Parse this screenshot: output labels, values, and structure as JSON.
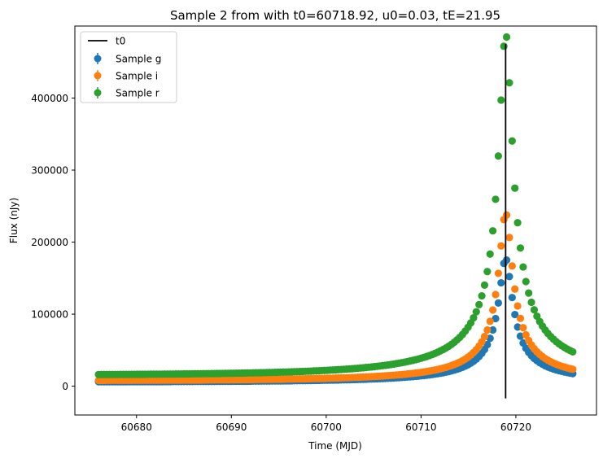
{
  "chart_data": {
    "type": "scatter",
    "title": "Sample 2 from with t0=60718.92, u0=0.03, tE=21.95",
    "xlabel": "Time (MJD)",
    "ylabel": "Flux (nJy)",
    "xlim": [
      60673.5,
      60728.5
    ],
    "ylim": [
      -40000,
      500000
    ],
    "xticks": [
      60680,
      60690,
      60700,
      60710,
      60720
    ],
    "xtick_labels": [
      "60680",
      "60690",
      "60700",
      "60710",
      "60720"
    ],
    "yticks": [
      0,
      100000,
      200000,
      300000,
      400000
    ],
    "ytick_labels": [
      "0",
      "100000",
      "200000",
      "300000",
      "400000"
    ],
    "grid": false,
    "legend_position": "top-left",
    "legend": [
      "t0",
      "Sample g",
      "Sample i",
      "Sample r"
    ],
    "t0_line": {
      "label": "t0",
      "x": 60718.92,
      "y_range": [
        -17000,
        475000
      ],
      "color": "#000000"
    },
    "model": {
      "t0": 60718.92,
      "u0": 0.03,
      "tE": 21.95,
      "x_start": 60676,
      "x_end": 60726,
      "n_points": 173
    },
    "series": [
      {
        "name": "Sample g",
        "color": "#1f77b4",
        "baseline": 5800,
        "amplitude": 5300
      },
      {
        "name": "Sample i",
        "color": "#ff7f0e",
        "baseline": 7600,
        "amplitude": 7200
      },
      {
        "name": "Sample r",
        "color": "#2ca02c",
        "baseline": 15200,
        "amplitude": 14700
      }
    ]
  }
}
